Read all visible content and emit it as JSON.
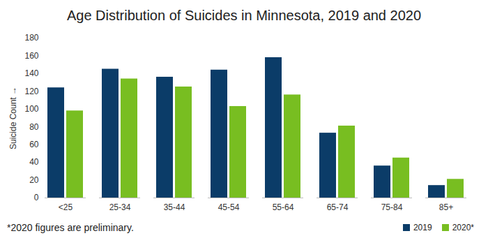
{
  "chart_data": {
    "type": "bar",
    "title": "Age Distribution of Suicides in Minnesota, 2019 and 2020",
    "y_label": "Suicide Count",
    "annotation": "*2020 figures are preliminary.",
    "categories": [
      "<25",
      "25-34",
      "35-44",
      "45-54",
      "55-64",
      "65-74",
      "75-84",
      "85+"
    ],
    "series": [
      {
        "name": "2019",
        "color": "#0b3c68",
        "values": [
          124,
          145,
          136,
          144,
          158,
          73,
          36,
          14
        ]
      },
      {
        "name": "2020*",
        "color": "#78be21",
        "values": [
          98,
          134,
          125,
          103,
          116,
          81,
          45,
          21
        ]
      }
    ],
    "ylim": [
      0,
      180
    ],
    "yticks": [
      0,
      20,
      40,
      60,
      80,
      100,
      120,
      140,
      160,
      180
    ],
    "grid": false,
    "legend": "bottom-right"
  }
}
